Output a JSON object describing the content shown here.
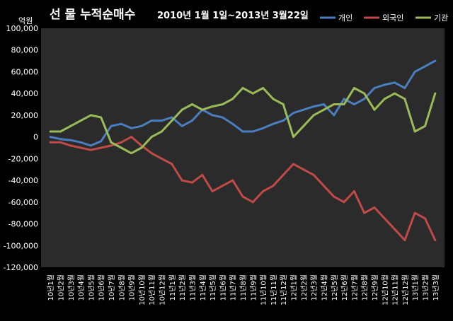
{
  "chart_data": {
    "type": "line",
    "title": "선 물 누적순매수",
    "subtitle": "2010년 1월 1일~2013년 3월22일",
    "ylabel": "억원",
    "xlabel": "",
    "ylim": [
      -120000,
      100000
    ],
    "yticks": [
      -120000,
      -100000,
      -80000,
      -60000,
      -40000,
      -20000,
      0,
      20000,
      40000,
      60000,
      80000,
      100000
    ],
    "ytick_labels": [
      "-120,000",
      "-100,000",
      "-80,000",
      "-60,000",
      "-40,000",
      "-20,000",
      "0",
      "20,000",
      "40,000",
      "60,000",
      "80,000",
      "100,000"
    ],
    "categories": [
      "10년1월",
      "10년2월",
      "10년3월",
      "10년4월",
      "10년5월",
      "10년6월",
      "10년7월",
      "10년8월",
      "10년9월",
      "10년10월",
      "10년11월",
      "10년12월",
      "11년1월",
      "11년2월",
      "11년3월",
      "11년4월",
      "11년5월",
      "11년6월",
      "11년7월",
      "11년8월",
      "11년9월",
      "11년10월",
      "11년11월",
      "11년12월",
      "12년1월",
      "12년2월",
      "12년3월",
      "12년4월",
      "12년5월",
      "12년6월",
      "12년7월",
      "12년8월",
      "12년9월",
      "12년10월",
      "12년11월",
      "12년12월",
      "13년1월",
      "13년2월",
      "13년3월"
    ],
    "grid": false,
    "legend_position": "top-right",
    "series": [
      {
        "name": "개인",
        "color": "#4a7ebf",
        "values": [
          0,
          -2000,
          -3000,
          -5000,
          -8000,
          -4000,
          10000,
          12000,
          8000,
          10000,
          15000,
          15000,
          18000,
          10000,
          15000,
          25000,
          20000,
          18000,
          12000,
          5000,
          5000,
          8000,
          12000,
          15000,
          22000,
          25000,
          28000,
          30000,
          20000,
          35000,
          30000,
          35000,
          45000,
          48000,
          50000,
          45000,
          60000,
          65000,
          70000
        ]
      },
      {
        "name": "외국인",
        "color": "#bf4a48",
        "values": [
          -5000,
          -5000,
          -8000,
          -10000,
          -12000,
          -10000,
          -8000,
          -5000,
          0,
          -8000,
          -15000,
          -20000,
          -25000,
          -40000,
          -42000,
          -35000,
          -50000,
          -45000,
          -40000,
          -55000,
          -60000,
          -50000,
          -45000,
          -35000,
          -25000,
          -30000,
          -35000,
          -45000,
          -55000,
          -60000,
          -50000,
          -70000,
          -65000,
          -75000,
          -85000,
          -95000,
          -70000,
          -75000,
          -95000
        ]
      },
      {
        "name": "기관",
        "color": "#9bbb59",
        "values": [
          5000,
          5000,
          10000,
          15000,
          20000,
          18000,
          -5000,
          -10000,
          -15000,
          -10000,
          0,
          5000,
          15000,
          25000,
          30000,
          25000,
          28000,
          30000,
          35000,
          45000,
          40000,
          45000,
          35000,
          30000,
          0,
          10000,
          20000,
          25000,
          30000,
          30000,
          45000,
          40000,
          25000,
          35000,
          40000,
          35000,
          5000,
          10000,
          40000
        ]
      }
    ]
  }
}
